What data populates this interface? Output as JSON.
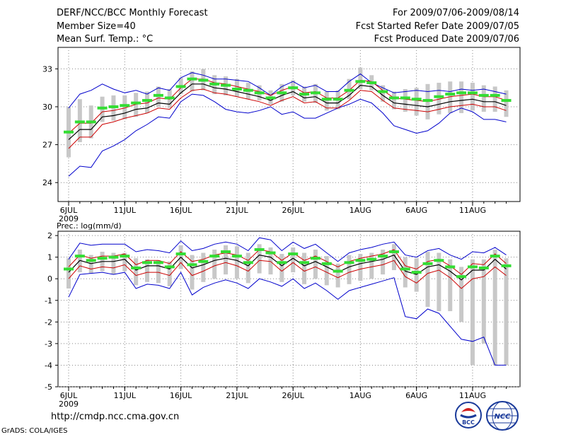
{
  "header": {
    "title": "DERF/NCC/BCC Monthly Forecast",
    "member": "Member Size=40",
    "variable": "Mean Surf. Temp.: °C",
    "period": "For 2009/07/06-2009/08/14",
    "started": "Fcst Started Refer Date 2009/07/05",
    "produced": "Fcst Produced Date 2009/07/06"
  },
  "footer": {
    "url": "http://cmdp.ncc.cma.gov.cn",
    "grads": "GrADS: COLA/IGES",
    "logo_bcc": "BCC",
    "logo_ncc": "NCC"
  },
  "colors": {
    "mean": "#000000",
    "ensemble": "#cc0000",
    "spread": "#0000cc",
    "median": "#33dd33",
    "bar": "#c8c8c8"
  },
  "chart_data": [
    {
      "type": "line",
      "title": "Mean Surf. Temp.: °C",
      "days": 40,
      "x_tick_labels": [
        "6JUL",
        "11JUL",
        "16JUL",
        "21JUL",
        "26JUL",
        "1AUG",
        "6AUG",
        "11AUG"
      ],
      "x_tick_days": [
        0,
        5,
        10,
        15,
        20,
        26,
        31,
        36
      ],
      "year_label": "2009",
      "ylim": [
        22.5,
        34.7
      ],
      "yticks": [
        24,
        27,
        30,
        33
      ],
      "grid": true,
      "series": [
        {
          "name": "ensemble mean",
          "values": [
            27.4,
            28.2,
            28.2,
            29.2,
            29.3,
            29.5,
            29.8,
            29.9,
            30.3,
            30.2,
            31.1,
            31.8,
            31.8,
            31.5,
            31.4,
            31.2,
            31.0,
            30.8,
            30.5,
            30.9,
            31.2,
            30.7,
            30.8,
            30.3,
            30.3,
            30.9,
            31.7,
            31.6,
            30.9,
            30.3,
            30.2,
            30.1,
            30.0,
            30.2,
            30.4,
            30.5,
            30.6,
            30.4,
            30.4,
            30.1
          ]
        },
        {
          "name": "upper red",
          "values": [
            27.9,
            28.7,
            28.7,
            29.6,
            29.7,
            29.9,
            30.2,
            30.3,
            30.7,
            30.6,
            31.5,
            32.2,
            32.2,
            31.9,
            31.8,
            31.6,
            31.4,
            31.2,
            30.9,
            31.3,
            31.6,
            31.1,
            31.2,
            30.7,
            30.7,
            31.3,
            32.1,
            32.0,
            31.3,
            30.7,
            30.6,
            30.5,
            30.4,
            30.6,
            30.8,
            30.9,
            31.0,
            30.8,
            30.8,
            30.5
          ]
        },
        {
          "name": "lower red",
          "values": [
            26.7,
            27.6,
            27.6,
            28.6,
            28.8,
            29.1,
            29.3,
            29.5,
            29.9,
            29.8,
            30.7,
            31.3,
            31.4,
            31.1,
            31.0,
            30.8,
            30.6,
            30.4,
            30.1,
            30.5,
            30.8,
            30.3,
            30.4,
            29.9,
            29.9,
            30.5,
            31.3,
            31.2,
            30.5,
            29.9,
            29.8,
            29.7,
            29.6,
            29.8,
            30.0,
            30.1,
            30.2,
            30.0,
            30.0,
            29.7
          ]
        },
        {
          "name": "max",
          "values": [
            29.9,
            31.0,
            31.3,
            31.8,
            31.4,
            31.1,
            31.3,
            31.0,
            31.5,
            31.3,
            32.3,
            32.7,
            32.5,
            32.2,
            32.2,
            32.1,
            32.0,
            31.5,
            30.9,
            31.6,
            32.0,
            31.5,
            31.7,
            31.2,
            31.2,
            32.0,
            32.6,
            31.9,
            31.5,
            31.1,
            31.2,
            31.3,
            31.2,
            31.3,
            31.2,
            31.4,
            31.3,
            31.4,
            31.2,
            31.0
          ]
        },
        {
          "name": "min",
          "values": [
            24.5,
            25.3,
            25.2,
            26.5,
            26.9,
            27.4,
            28.1,
            28.6,
            29.2,
            29.1,
            30.4,
            31.0,
            30.9,
            30.4,
            29.8,
            29.6,
            29.5,
            29.7,
            30.0,
            29.4,
            29.6,
            29.1,
            29.1,
            29.5,
            29.9,
            30.2,
            30.6,
            30.3,
            29.5,
            28.5,
            28.2,
            27.9,
            28.1,
            28.7,
            29.5,
            29.9,
            29.6,
            29.0,
            29.0,
            28.8
          ]
        },
        {
          "name": "median",
          "values": [
            28.0,
            28.8,
            28.8,
            29.9,
            30.0,
            30.1,
            30.3,
            30.5,
            30.9,
            30.7,
            31.6,
            32.2,
            32.1,
            31.8,
            31.7,
            31.4,
            31.3,
            31.1,
            30.7,
            31.1,
            31.5,
            31.0,
            31.1,
            30.6,
            30.6,
            31.3,
            32.0,
            31.9,
            31.2,
            30.7,
            30.7,
            30.6,
            30.5,
            30.8,
            31.0,
            31.1,
            31.1,
            30.9,
            30.9,
            30.5
          ]
        },
        {
          "name": "range bar low",
          "values": [
            26.0,
            27.2,
            27.5,
            28.8,
            28.9,
            29.0,
            29.2,
            29.5,
            30.0,
            29.9,
            31.0,
            31.2,
            31.3,
            31.0,
            30.9,
            30.8,
            30.6,
            30.5,
            30.2,
            30.4,
            30.9,
            30.4,
            30.3,
            29.7,
            29.8,
            30.6,
            31.4,
            31.3,
            30.4,
            29.8,
            29.6,
            29.3,
            29.0,
            29.4,
            29.5,
            29.5,
            29.7,
            29.6,
            29.6,
            29.2
          ]
        },
        {
          "name": "range bar high",
          "values": [
            30.0,
            30.6,
            30.1,
            30.8,
            30.9,
            30.9,
            31.1,
            31.2,
            31.6,
            31.4,
            32.3,
            32.8,
            33.0,
            32.5,
            32.4,
            32.2,
            31.9,
            31.7,
            31.3,
            31.8,
            32.1,
            31.6,
            31.8,
            31.2,
            31.3,
            32.2,
            33.1,
            32.5,
            31.7,
            31.2,
            31.4,
            31.5,
            31.8,
            31.9,
            32.0,
            32.0,
            31.9,
            31.7,
            31.6,
            31.3
          ]
        }
      ]
    },
    {
      "type": "line",
      "title": "Prec.: log(mm/d)",
      "days": 40,
      "x_tick_labels": [
        "6JUL",
        "11JUL",
        "16JUL",
        "21JUL",
        "26JUL",
        "1AUG",
        "6AUG",
        "11AUG"
      ],
      "x_tick_days": [
        0,
        5,
        10,
        15,
        20,
        26,
        31,
        36
      ],
      "year_label": "2009",
      "ylim": [
        -5,
        2.2
      ],
      "yticks": [
        -5,
        -4,
        -3,
        -2,
        -1,
        0,
        1,
        2
      ],
      "grid": true,
      "series": [
        {
          "name": "ensemble mean",
          "values": [
            0.3,
            0.85,
            0.7,
            0.8,
            0.8,
            0.9,
            0.4,
            0.6,
            0.6,
            0.45,
            1.0,
            0.5,
            0.65,
            0.85,
            0.95,
            0.85,
            0.6,
            1.1,
            1.0,
            0.6,
            0.95,
            0.6,
            0.8,
            0.55,
            0.3,
            0.55,
            0.7,
            0.8,
            0.9,
            1.1,
            0.35,
            0.2,
            0.55,
            0.65,
            0.35,
            -0.05,
            0.4,
            0.4,
            0.9,
            0.45
          ]
        },
        {
          "name": "upper red",
          "values": [
            0.55,
            1.1,
            0.95,
            1.05,
            1.05,
            1.15,
            0.65,
            0.85,
            0.85,
            0.7,
            1.25,
            0.8,
            0.9,
            1.1,
            1.2,
            1.1,
            0.85,
            1.35,
            1.25,
            0.85,
            1.2,
            0.85,
            1.05,
            0.8,
            0.55,
            0.8,
            0.95,
            1.05,
            1.15,
            1.35,
            0.6,
            0.45,
            0.8,
            0.9,
            0.6,
            0.2,
            0.7,
            0.65,
            1.15,
            0.7
          ]
        },
        {
          "name": "lower red",
          "values": [
            0.0,
            0.6,
            0.45,
            0.55,
            0.5,
            0.65,
            0.15,
            0.3,
            0.3,
            0.15,
            0.75,
            0.15,
            0.35,
            0.6,
            0.75,
            0.6,
            0.35,
            0.85,
            0.8,
            0.35,
            0.75,
            0.35,
            0.55,
            0.3,
            0.05,
            0.3,
            0.45,
            0.55,
            0.65,
            0.85,
            0.1,
            -0.2,
            0.25,
            0.4,
            0.05,
            -0.45,
            0.0,
            0.1,
            0.55,
            0.15
          ]
        },
        {
          "name": "max",
          "values": [
            0.9,
            1.65,
            1.55,
            1.6,
            1.6,
            1.6,
            1.25,
            1.35,
            1.3,
            1.2,
            1.75,
            1.3,
            1.4,
            1.6,
            1.7,
            1.6,
            1.3,
            1.9,
            1.8,
            1.3,
            1.7,
            1.4,
            1.6,
            1.2,
            0.8,
            1.2,
            1.35,
            1.45,
            1.6,
            1.7,
            1.1,
            1.0,
            1.3,
            1.4,
            1.1,
            0.9,
            1.25,
            1.2,
            1.45,
            1.1
          ]
        },
        {
          "name": "min",
          "values": [
            -0.85,
            0.2,
            0.25,
            0.3,
            0.2,
            0.3,
            -0.45,
            -0.25,
            -0.3,
            -0.45,
            0.3,
            -0.75,
            -0.4,
            -0.2,
            -0.05,
            -0.2,
            -0.45,
            0.0,
            -0.15,
            -0.35,
            0.0,
            -0.45,
            -0.2,
            -0.55,
            -0.95,
            -0.55,
            -0.4,
            -0.25,
            -0.1,
            0.05,
            -1.75,
            -1.85,
            -1.4,
            -1.6,
            -2.2,
            -2.8,
            -2.9,
            -2.7,
            -4.0,
            -4.0
          ]
        },
        {
          "name": "median",
          "values": [
            0.45,
            1.05,
            0.85,
            0.95,
            1.0,
            1.05,
            0.5,
            0.75,
            0.75,
            0.55,
            1.15,
            0.65,
            0.8,
            1.05,
            1.25,
            1.05,
            0.75,
            1.35,
            1.2,
            0.75,
            1.15,
            0.75,
            0.95,
            0.7,
            0.35,
            0.75,
            0.85,
            0.9,
            1.05,
            1.25,
            0.45,
            0.3,
            0.7,
            0.85,
            0.55,
            0.1,
            0.55,
            0.5,
            1.05,
            0.6
          ]
        },
        {
          "name": "range bar low",
          "values": [
            -0.45,
            0.3,
            0.25,
            0.35,
            0.2,
            0.35,
            -0.3,
            -0.15,
            -0.2,
            -0.35,
            0.45,
            -0.5,
            -0.15,
            0.0,
            0.2,
            0.0,
            -0.2,
            0.25,
            0.2,
            -0.15,
            0.3,
            -0.25,
            0.0,
            -0.3,
            -0.4,
            -0.25,
            -0.1,
            0.0,
            0.2,
            0.4,
            -0.4,
            -0.6,
            -1.3,
            -1.5,
            -1.5,
            -2.0,
            -4.0,
            -3.0,
            -4.0,
            -4.0
          ]
        },
        {
          "name": "range bar high",
          "values": [
            0.95,
            1.35,
            1.1,
            1.25,
            1.2,
            1.2,
            0.95,
            0.9,
            0.85,
            0.8,
            1.55,
            1.1,
            1.2,
            1.35,
            1.55,
            1.5,
            1.2,
            1.6,
            1.45,
            1.15,
            1.45,
            1.2,
            1.35,
            1.05,
            0.7,
            1.1,
            1.15,
            1.2,
            1.35,
            1.6,
            1.0,
            0.95,
            1.25,
            1.2,
            0.9,
            0.55,
            0.9,
            0.9,
            1.35,
            0.95
          ]
        }
      ]
    }
  ]
}
